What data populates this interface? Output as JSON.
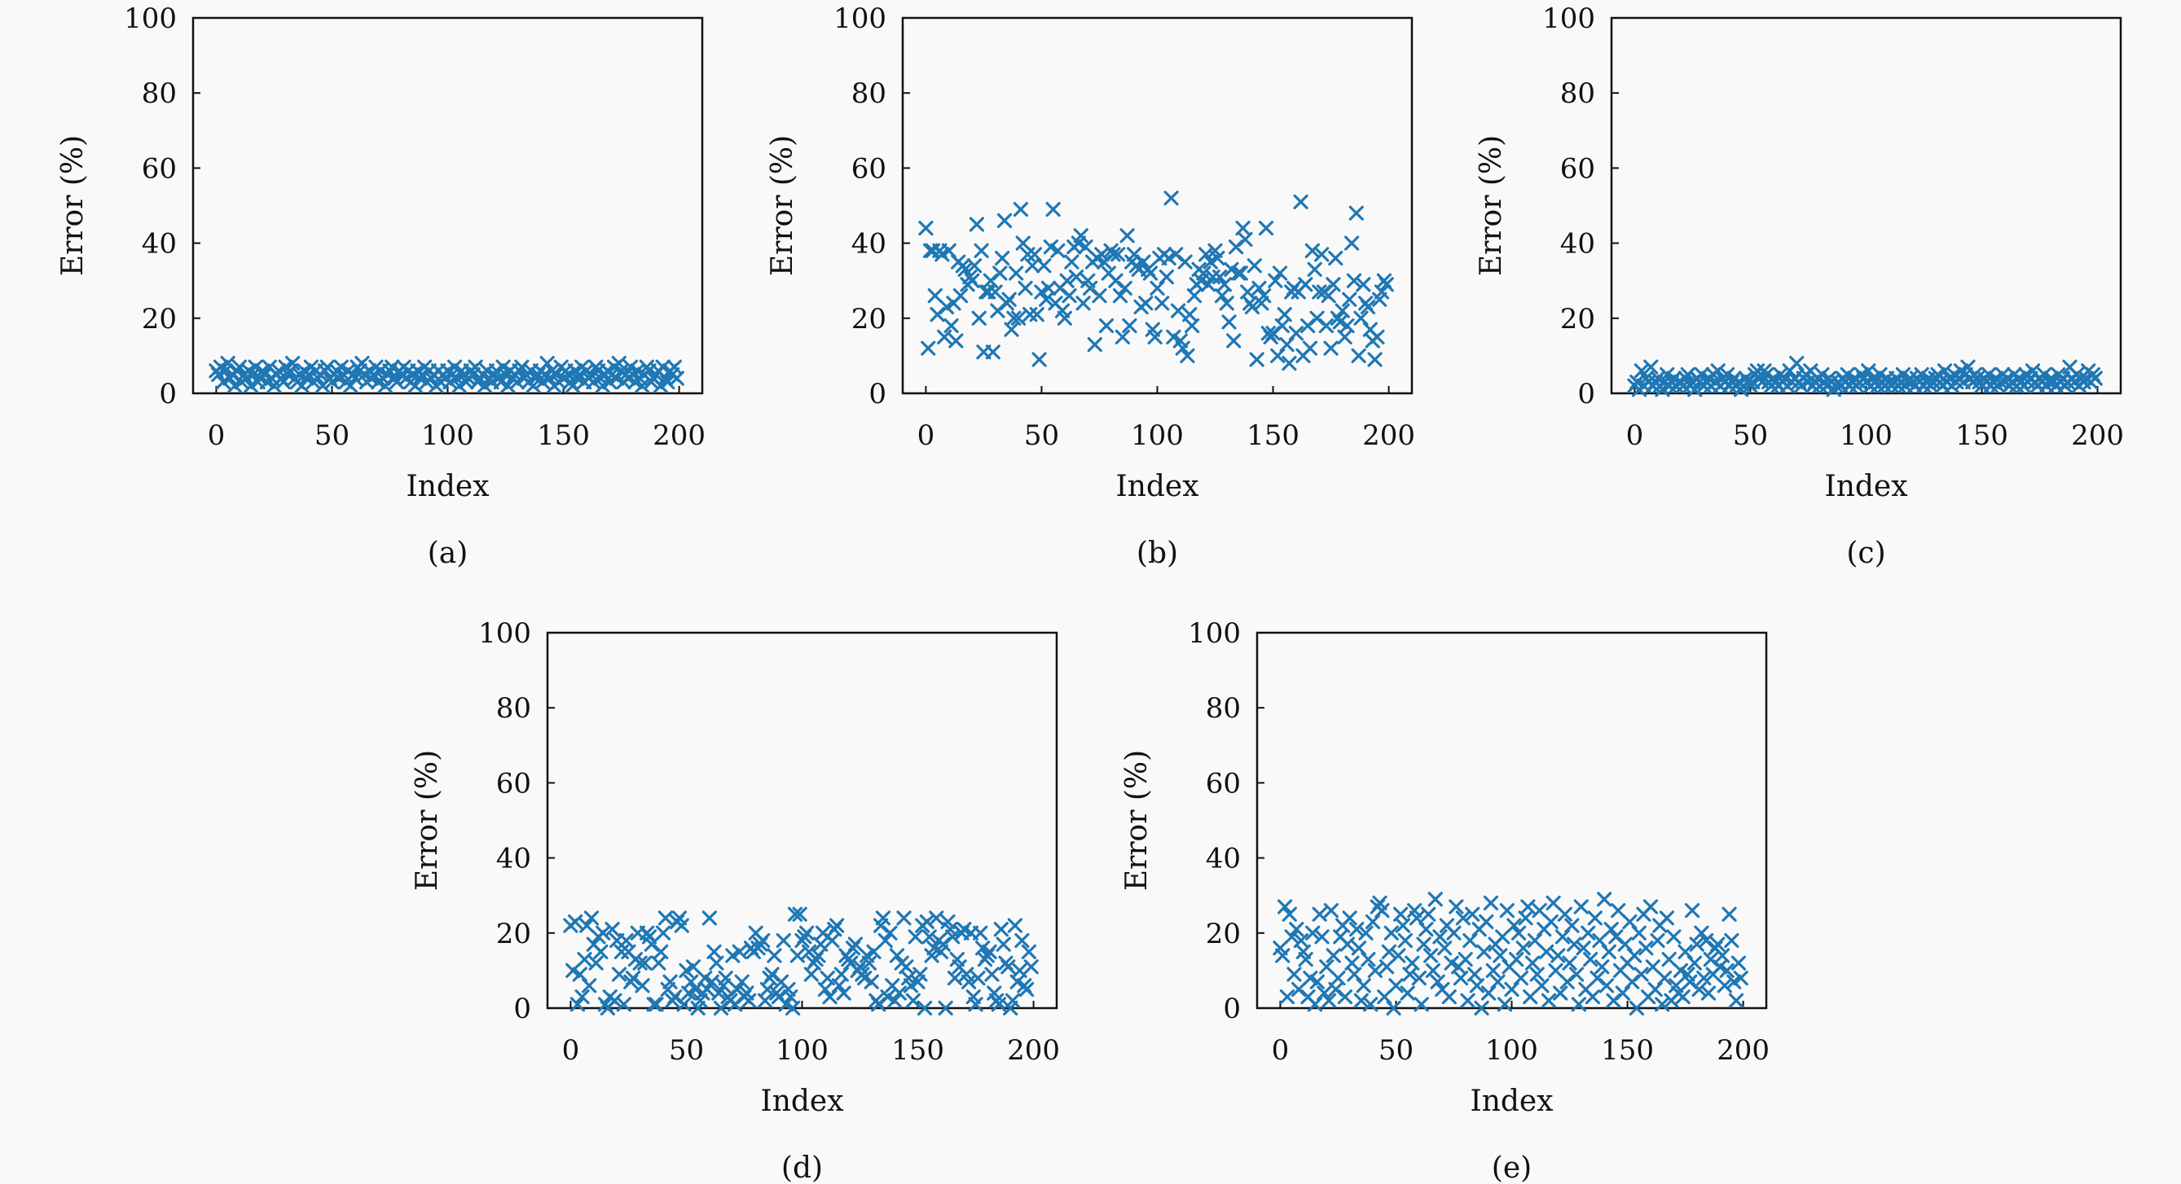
{
  "colors": {
    "marker": "#1f77b4",
    "axis": "#111111",
    "background": "#f9f9f9"
  },
  "chart_data": [
    {
      "type": "scatter",
      "caption": "(a)",
      "xlabel": "Index",
      "ylabel": "Error (%)",
      "marker": "x",
      "xlim": [
        0,
        200
      ],
      "ylim": [
        0,
        100
      ],
      "xticks": [
        "0",
        "50",
        "100",
        "150",
        "200"
      ],
      "yticks": [
        "0",
        "20",
        "40",
        "60",
        "80",
        "100"
      ],
      "grid": false,
      "y": [
        6,
        5,
        7,
        3,
        6,
        8,
        4,
        5,
        2,
        6,
        7,
        3,
        5,
        4,
        6,
        2,
        5,
        7,
        3,
        4,
        6,
        5,
        3,
        7,
        4,
        2,
        5,
        6,
        4,
        3,
        7,
        5,
        6,
        8,
        4,
        3,
        5,
        2,
        6,
        4,
        5,
        7,
        3,
        6,
        4,
        5,
        2,
        6,
        7,
        4,
        3,
        5,
        6,
        4,
        7,
        5,
        3,
        6,
        2,
        5,
        4,
        7,
        6,
        8,
        5,
        3,
        6,
        4,
        5,
        7,
        3,
        6,
        4,
        2,
        5,
        6,
        7,
        4,
        3,
        6,
        5,
        7,
        4,
        6,
        3,
        5,
        2,
        6,
        4,
        5,
        7,
        3,
        6,
        4,
        5,
        2,
        6,
        3,
        5,
        4,
        6,
        3,
        5,
        7,
        4,
        2,
        6,
        5,
        3,
        4,
        6,
        5,
        7,
        3,
        4,
        5,
        2,
        6,
        4,
        3,
        5,
        6,
        4,
        3,
        7,
        5,
        2,
        6,
        4,
        5,
        3,
        6,
        7,
        4,
        5,
        3,
        6,
        2,
        4,
        5,
        6,
        3,
        5,
        8,
        4,
        6,
        2,
        5,
        3,
        7,
        4,
        6,
        5,
        3,
        2,
        6,
        4,
        5,
        7,
        3,
        6,
        4,
        5,
        3,
        7,
        6,
        4,
        2,
        5,
        6,
        3,
        5,
        7,
        4,
        8,
        6,
        3,
        5,
        4,
        7,
        5,
        3,
        6,
        4,
        2,
        5,
        7,
        6,
        3,
        4,
        5,
        6,
        2,
        7,
        4,
        3,
        6,
        5,
        7,
        4
      ]
    },
    {
      "type": "scatter",
      "caption": "(b)",
      "xlabel": "Index",
      "ylabel": "Error (%)",
      "marker": "x",
      "xlim": [
        0,
        200
      ],
      "ylim": [
        0,
        100
      ],
      "xticks": [
        "0",
        "50",
        "100",
        "150",
        "200"
      ],
      "yticks": [
        "0",
        "20",
        "40",
        "60",
        "80",
        "100"
      ],
      "grid": false,
      "y": [
        44,
        12,
        38,
        38,
        26,
        21,
        38,
        37,
        15,
        23,
        38,
        18,
        24,
        14,
        35,
        26,
        34,
        33,
        29,
        31,
        30,
        34,
        45,
        20,
        38,
        11,
        27,
        27,
        30,
        11,
        27,
        22,
        32,
        36,
        46,
        24,
        25,
        17,
        20,
        32,
        20,
        49,
        40,
        28,
        37,
        21,
        34,
        37,
        21,
        9,
        27,
        34,
        25,
        28,
        39,
        49,
        24,
        38,
        28,
        22,
        20,
        30,
        26,
        35,
        39,
        31,
        40,
        42,
        24,
        39,
        30,
        28,
        35,
        13,
        36,
        26,
        37,
        35,
        18,
        32,
        38,
        37,
        30,
        37,
        26,
        15,
        28,
        42,
        18,
        35,
        37,
        34,
        33,
        23,
        35,
        24,
        33,
        32,
        17,
        15,
        28,
        36,
        24,
        37,
        31,
        36,
        52,
        15,
        37,
        22,
        14,
        12,
        35,
        10,
        21,
        18,
        26,
        29,
        33,
        30,
        32,
        37,
        29,
        35,
        31,
        38,
        36,
        31,
        26,
        29,
        24,
        19,
        33,
        14,
        39,
        32,
        32,
        44,
        41,
        27,
        24,
        23,
        34,
        9,
        28,
        24,
        26,
        44,
        16,
        15,
        16,
        30,
        10,
        32,
        18,
        21,
        13,
        8,
        27,
        28,
        16,
        27,
        51,
        10,
        29,
        18,
        12,
        38,
        33,
        20,
        27,
        37,
        27,
        18,
        26,
        12,
        29,
        36,
        20,
        19,
        22,
        15,
        18,
        25,
        40,
        30,
        48,
        10,
        20,
        29,
        24,
        23,
        17,
        14,
        9,
        15,
        25,
        27,
        30,
        29
      ]
    },
    {
      "type": "scatter",
      "caption": "(c)",
      "xlabel": "Index",
      "ylabel": "Error (%)",
      "marker": "x",
      "xlim": [
        0,
        200
      ],
      "ylim": [
        0,
        100
      ],
      "xticks": [
        "0",
        "50",
        "100",
        "150",
        "200"
      ],
      "yticks": [
        "0",
        "20",
        "40",
        "60",
        "80",
        "100"
      ],
      "grid": false,
      "y": [
        2,
        3,
        1,
        6,
        2,
        4,
        3,
        7,
        2,
        3,
        4,
        2,
        1,
        3,
        5,
        2,
        3,
        4,
        2,
        3,
        3,
        2,
        4,
        5,
        2,
        3,
        1,
        4,
        3,
        5,
        2,
        3,
        4,
        2,
        5,
        3,
        6,
        2,
        4,
        3,
        5,
        2,
        3,
        4,
        2,
        3,
        1,
        2,
        4,
        3,
        2,
        3,
        5,
        6,
        4,
        3,
        6,
        5,
        3,
        2,
        4,
        3,
        2,
        5,
        3,
        4,
        2,
        6,
        3,
        4,
        8,
        3,
        2,
        4,
        5,
        3,
        6,
        2,
        3,
        4,
        2,
        5,
        3,
        2,
        4,
        3,
        1,
        2,
        3,
        2,
        4,
        3,
        5,
        2,
        3,
        4,
        2,
        3,
        5,
        4,
        3,
        6,
        2,
        4,
        3,
        2,
        5,
        3,
        2,
        4,
        3,
        2,
        3,
        4,
        2,
        3,
        5,
        2,
        3,
        4,
        3,
        2,
        4,
        3,
        5,
        2,
        3,
        4,
        2,
        3,
        4,
        5,
        3,
        2,
        6,
        3,
        4,
        2,
        5,
        3,
        4,
        6,
        3,
        5,
        7,
        4,
        3,
        5,
        4,
        3,
        2,
        4,
        3,
        5,
        2,
        3,
        4,
        2,
        3,
        5,
        3,
        4,
        2,
        3,
        5,
        2,
        4,
        3,
        2,
        5,
        3,
        4,
        6,
        3,
        2,
        4,
        3,
        5,
        2,
        3,
        4,
        3,
        2,
        5,
        3,
        4,
        2,
        3,
        7,
        4,
        3,
        5,
        2,
        4,
        3,
        4,
        6,
        3,
        5,
        4
      ]
    },
    {
      "type": "scatter",
      "caption": "(d)",
      "xlabel": "Index",
      "ylabel": "Error (%)",
      "marker": "x",
      "xlim": [
        0,
        200
      ],
      "ylim": [
        0,
        100
      ],
      "xticks": [
        "0",
        "50",
        "100",
        "150",
        "200"
      ],
      "yticks": [
        "0",
        "20",
        "40",
        "60",
        "80",
        "100"
      ],
      "grid": false,
      "y": [
        22,
        10,
        23,
        1,
        9,
        3,
        13,
        22,
        6,
        24,
        17,
        12,
        19,
        15,
        20,
        1,
        0,
        3,
        21,
        2,
        18,
        9,
        15,
        1,
        18,
        15,
        7,
        8,
        13,
        20,
        12,
        6,
        12,
        20,
        19,
        17,
        1,
        1,
        12,
        15,
        20,
        24,
        5,
        7,
        2,
        3,
        23,
        24,
        22,
        1,
        10,
        4,
        7,
        11,
        5,
        0,
        2,
        4,
        8,
        5,
        24,
        7,
        15,
        12,
        4,
        0,
        6,
        8,
        3,
        2,
        14,
        1,
        5,
        15,
        7,
        3,
        4,
        2,
        16,
        15,
        20,
        16,
        17,
        18,
        2,
        5,
        8,
        9,
        14,
        4,
        3,
        7,
        18,
        1,
        5,
        3,
        0,
        25,
        14,
        25,
        18,
        19,
        20,
        15,
        9,
        12,
        13,
        14,
        17,
        20,
        5,
        8,
        3,
        18,
        21,
        22,
        6,
        9,
        4,
        14,
        13,
        12,
        16,
        17,
        10,
        11,
        9,
        8,
        14,
        12,
        7,
        15,
        2,
        1,
        22,
        24,
        18,
        3,
        20,
        6,
        2,
        14,
        4,
        12,
        24,
        11,
        8,
        6,
        2,
        19,
        7,
        9,
        22,
        0,
        23,
        19,
        14,
        16,
        24,
        18,
        15,
        17,
        0,
        23,
        21,
        19,
        8,
        13,
        11,
        20,
        21,
        9,
        7,
        20,
        3,
        1,
        8,
        20,
        16,
        13,
        14,
        15,
        9,
        4,
        2,
        1,
        21,
        17,
        12,
        11,
        0,
        2,
        22,
        7,
        10,
        18,
        6,
        5,
        15,
        11
      ]
    },
    {
      "type": "scatter",
      "caption": "(e)",
      "xlabel": "Index",
      "ylabel": "Error (%)",
      "marker": "x",
      "xlim": [
        0,
        200
      ],
      "ylim": [
        0,
        100
      ],
      "xticks": [
        "0",
        "50",
        "100",
        "150",
        "200"
      ],
      "yticks": [
        "0",
        "20",
        "40",
        "60",
        "80",
        "100"
      ],
      "grid": false,
      "y": [
        16,
        14,
        27,
        3,
        25,
        19,
        9,
        21,
        5,
        18,
        15,
        13,
        3,
        8,
        20,
        1,
        7,
        25,
        19,
        4,
        11,
        2,
        26,
        14,
        5,
        8,
        19,
        22,
        3,
        17,
        24,
        12,
        9,
        21,
        16,
        2,
        6,
        20,
        13,
        1,
        23,
        10,
        27,
        28,
        26,
        3,
        11,
        15,
        20,
        0,
        6,
        14,
        25,
        22,
        18,
        4,
        9,
        12,
        26,
        24,
        8,
        1,
        17,
        21,
        25,
        14,
        10,
        29,
        7,
        19,
        5,
        16,
        22,
        3,
        12,
        20,
        27,
        11,
        8,
        24,
        13,
        2,
        18,
        25,
        9,
        6,
        21,
        0,
        15,
        23,
        4,
        28,
        10,
        17,
        7,
        14,
        19,
        1,
        26,
        11,
        5,
        22,
        13,
        20,
        8,
        16,
        24,
        27,
        3,
        12,
        18,
        9,
        26,
        6,
        21,
        15,
        2,
        23,
        28,
        10,
        14,
        4,
        19,
        25,
        7,
        12,
        22,
        17,
        9,
        1,
        27,
        16,
        5,
        20,
        13,
        3,
        24,
        8,
        18,
        11,
        29,
        6,
        15,
        21,
        2,
        19,
        26,
        10,
        4,
        17,
        12,
        23,
        7,
        14,
        0,
        20,
        9,
        25,
        16,
        3,
        27,
        11,
        5,
        18,
        22,
        1,
        8,
        24,
        13,
        2,
        19,
        6,
        4,
        10,
        3,
        15,
        9,
        7,
        26,
        12,
        17,
        5,
        20,
        8,
        18,
        4,
        13,
        9,
        16,
        17,
        11,
        14,
        6,
        10,
        25,
        18,
        7,
        2,
        12,
        8
      ]
    }
  ]
}
